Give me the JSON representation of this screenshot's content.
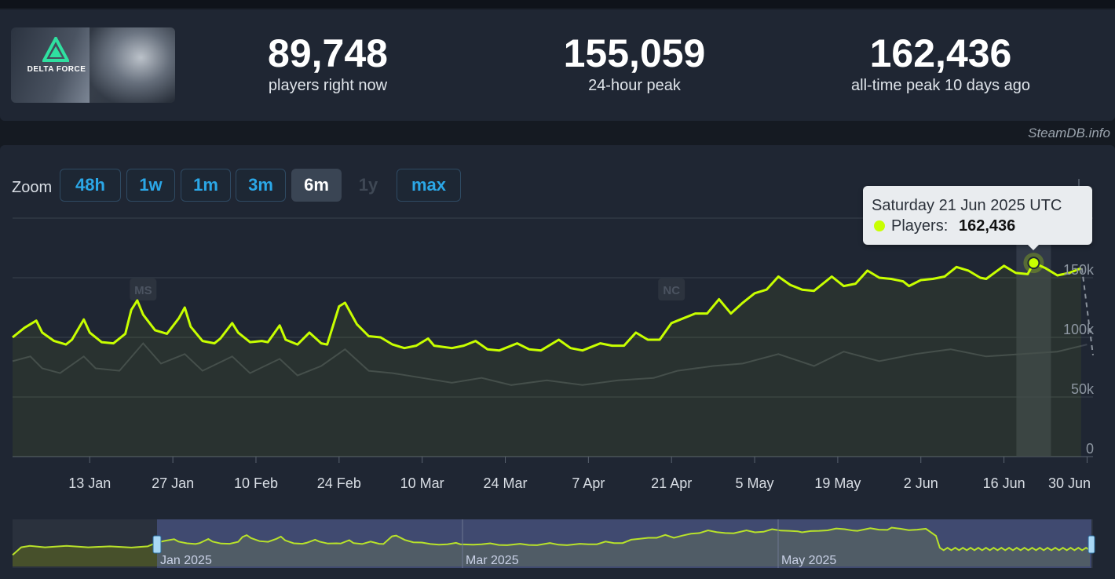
{
  "game": {
    "name": "DELTA FORCE"
  },
  "stats": [
    {
      "value": "89,748",
      "label": "players right now"
    },
    {
      "value": "155,059",
      "label": "24-hour peak"
    },
    {
      "value": "162,436",
      "label": "all-time peak 10 days ago"
    }
  ],
  "credit": "SteamDB.info",
  "zoom": {
    "label": "Zoom",
    "options": [
      {
        "label": "48h",
        "state": "normal"
      },
      {
        "label": "1w",
        "state": "normal"
      },
      {
        "label": "1m",
        "state": "normal"
      },
      {
        "label": "3m",
        "state": "normal"
      },
      {
        "label": "6m",
        "state": "active"
      },
      {
        "label": "1y",
        "state": "disabled"
      },
      {
        "label": "max",
        "state": "normal"
      }
    ]
  },
  "tooltip": {
    "date": "Saturday 21 Jun 2025 UTC",
    "series": "Players:",
    "value": "162,436"
  },
  "colors": {
    "players_line": "#c8ff00",
    "secondary_line": "#3d4450",
    "panel": "#1f2633",
    "accent": "#2ba7e7"
  },
  "chart_data": {
    "type": "line",
    "x_range": [
      "2024-12-31",
      "2025-07-01"
    ],
    "x_ticks": [
      {
        "date": "2025-01-13",
        "label": "13 Jan"
      },
      {
        "date": "2025-01-27",
        "label": "27 Jan"
      },
      {
        "date": "2025-02-10",
        "label": "10 Feb"
      },
      {
        "date": "2025-02-24",
        "label": "24 Feb"
      },
      {
        "date": "2025-03-10",
        "label": "10 Mar"
      },
      {
        "date": "2025-03-24",
        "label": "24 Mar"
      },
      {
        "date": "2025-04-07",
        "label": "7 Apr"
      },
      {
        "date": "2025-04-21",
        "label": "21 Apr"
      },
      {
        "date": "2025-05-05",
        "label": "5 May"
      },
      {
        "date": "2025-05-19",
        "label": "19 May"
      },
      {
        "date": "2025-06-02",
        "label": "2 Jun"
      },
      {
        "date": "2025-06-16",
        "label": "16 Jun"
      },
      {
        "date": "2025-06-30",
        "label": "30 Jun"
      }
    ],
    "y_ticks": [
      {
        "value": 0,
        "label": "0"
      },
      {
        "value": 50000,
        "label": "50k"
      },
      {
        "value": 100000,
        "label": "100k"
      },
      {
        "value": 150000,
        "label": "150k"
      }
    ],
    "ylim": [
      0,
      200000
    ],
    "grid": true,
    "flags": [
      {
        "label": "MS",
        "date": "2025-01-22"
      },
      {
        "label": "NC",
        "date": "2025-04-21"
      }
    ],
    "highlight": {
      "date": "2025-06-21",
      "value": 162436
    },
    "series": [
      {
        "name": "Players",
        "points": [
          [
            "2024-12-31",
            100000
          ],
          [
            "2025-01-02",
            108000
          ],
          [
            "2025-01-04",
            114000
          ],
          [
            "2025-01-05",
            104000
          ],
          [
            "2025-01-07",
            97000
          ],
          [
            "2025-01-09",
            94000
          ],
          [
            "2025-01-10",
            98000
          ],
          [
            "2025-01-12",
            115000
          ],
          [
            "2025-01-13",
            104000
          ],
          [
            "2025-01-15",
            96000
          ],
          [
            "2025-01-17",
            95000
          ],
          [
            "2025-01-19",
            103000
          ],
          [
            "2025-01-20",
            123000
          ],
          [
            "2025-01-21",
            131000
          ],
          [
            "2025-01-22",
            119000
          ],
          [
            "2025-01-24",
            106000
          ],
          [
            "2025-01-26",
            103000
          ],
          [
            "2025-01-28",
            116000
          ],
          [
            "2025-01-29",
            125000
          ],
          [
            "2025-01-30",
            109000
          ],
          [
            "2025-02-01",
            97000
          ],
          [
            "2025-02-03",
            95000
          ],
          [
            "2025-02-04",
            99000
          ],
          [
            "2025-02-06",
            112000
          ],
          [
            "2025-02-07",
            104000
          ],
          [
            "2025-02-09",
            96000
          ],
          [
            "2025-02-11",
            97000
          ],
          [
            "2025-02-12",
            96000
          ],
          [
            "2025-02-14",
            110000
          ],
          [
            "2025-02-15",
            98000
          ],
          [
            "2025-02-17",
            94000
          ],
          [
            "2025-02-19",
            104000
          ],
          [
            "2025-02-21",
            95000
          ],
          [
            "2025-02-22",
            94000
          ],
          [
            "2025-02-24",
            126000
          ],
          [
            "2025-02-25",
            129000
          ],
          [
            "2025-02-27",
            111000
          ],
          [
            "2025-03-01",
            101000
          ],
          [
            "2025-03-03",
            100000
          ],
          [
            "2025-03-05",
            94000
          ],
          [
            "2025-03-07",
            91000
          ],
          [
            "2025-03-09",
            93000
          ],
          [
            "2025-03-11",
            99000
          ],
          [
            "2025-03-12",
            93000
          ],
          [
            "2025-03-15",
            91000
          ],
          [
            "2025-03-17",
            93000
          ],
          [
            "2025-03-19",
            97000
          ],
          [
            "2025-03-21",
            90000
          ],
          [
            "2025-03-23",
            89000
          ],
          [
            "2025-03-26",
            95000
          ],
          [
            "2025-03-28",
            90000
          ],
          [
            "2025-03-30",
            89000
          ],
          [
            "2025-04-02",
            98000
          ],
          [
            "2025-04-04",
            91000
          ],
          [
            "2025-04-06",
            89000
          ],
          [
            "2025-04-09",
            95000
          ],
          [
            "2025-04-11",
            93000
          ],
          [
            "2025-04-13",
            93000
          ],
          [
            "2025-04-15",
            104000
          ],
          [
            "2025-04-17",
            98000
          ],
          [
            "2025-04-19",
            98000
          ],
          [
            "2025-04-21",
            112000
          ],
          [
            "2025-04-23",
            116000
          ],
          [
            "2025-04-25",
            120000
          ],
          [
            "2025-04-27",
            120000
          ],
          [
            "2025-04-29",
            132000
          ],
          [
            "2025-05-01",
            120000
          ],
          [
            "2025-05-03",
            129000
          ],
          [
            "2025-05-05",
            137000
          ],
          [
            "2025-05-07",
            140000
          ],
          [
            "2025-05-09",
            151000
          ],
          [
            "2025-05-11",
            144000
          ],
          [
            "2025-05-13",
            140000
          ],
          [
            "2025-05-15",
            139000
          ],
          [
            "2025-05-18",
            151000
          ],
          [
            "2025-05-20",
            143000
          ],
          [
            "2025-05-22",
            145000
          ],
          [
            "2025-05-24",
            156000
          ],
          [
            "2025-05-26",
            150000
          ],
          [
            "2025-05-28",
            149000
          ],
          [
            "2025-05-30",
            147000
          ],
          [
            "2025-05-31",
            143000
          ],
          [
            "2025-06-02",
            148000
          ],
          [
            "2025-06-04",
            149000
          ],
          [
            "2025-06-06",
            151000
          ],
          [
            "2025-06-08",
            159000
          ],
          [
            "2025-06-10",
            156000
          ],
          [
            "2025-06-12",
            150000
          ],
          [
            "2025-06-13",
            149000
          ],
          [
            "2025-06-16",
            160000
          ],
          [
            "2025-06-18",
            154000
          ],
          [
            "2025-06-20",
            153000
          ],
          [
            "2025-06-21",
            162436
          ],
          [
            "2025-06-23",
            158000
          ],
          [
            "2025-06-25",
            152000
          ],
          [
            "2025-06-27",
            154000
          ],
          [
            "2025-06-29",
            158000
          ]
        ]
      },
      {
        "name": "",
        "points": [
          [
            "2024-12-31",
            80000
          ],
          [
            "2025-01-03",
            84000
          ],
          [
            "2025-01-05",
            74000
          ],
          [
            "2025-01-08",
            70000
          ],
          [
            "2025-01-12",
            84000
          ],
          [
            "2025-01-14",
            74000
          ],
          [
            "2025-01-18",
            72000
          ],
          [
            "2025-01-22",
            95000
          ],
          [
            "2025-01-25",
            78000
          ],
          [
            "2025-01-29",
            86000
          ],
          [
            "2025-02-01",
            72000
          ],
          [
            "2025-02-06",
            84000
          ],
          [
            "2025-02-09",
            70000
          ],
          [
            "2025-02-14",
            82000
          ],
          [
            "2025-02-17",
            68000
          ],
          [
            "2025-02-21",
            76000
          ],
          [
            "2025-02-25",
            90000
          ],
          [
            "2025-03-01",
            72000
          ],
          [
            "2025-03-05",
            70000
          ],
          [
            "2025-03-10",
            66000
          ],
          [
            "2025-03-15",
            62000
          ],
          [
            "2025-03-20",
            66000
          ],
          [
            "2025-03-25",
            60000
          ],
          [
            "2025-03-31",
            64000
          ],
          [
            "2025-04-06",
            60000
          ],
          [
            "2025-04-12",
            64000
          ],
          [
            "2025-04-18",
            66000
          ],
          [
            "2025-04-22",
            72000
          ],
          [
            "2025-04-28",
            76000
          ],
          [
            "2025-05-03",
            78000
          ],
          [
            "2025-05-09",
            86000
          ],
          [
            "2025-05-15",
            76000
          ],
          [
            "2025-05-20",
            88000
          ],
          [
            "2025-05-26",
            80000
          ],
          [
            "2025-06-01",
            86000
          ],
          [
            "2025-06-07",
            90000
          ],
          [
            "2025-06-13",
            84000
          ],
          [
            "2025-06-19",
            86000
          ],
          [
            "2025-06-25",
            88000
          ],
          [
            "2025-06-30",
            94000
          ]
        ]
      }
    ],
    "navigator": {
      "x_ticks": [
        "Jan 2025",
        "Mar 2025",
        "May 2025"
      ]
    }
  }
}
